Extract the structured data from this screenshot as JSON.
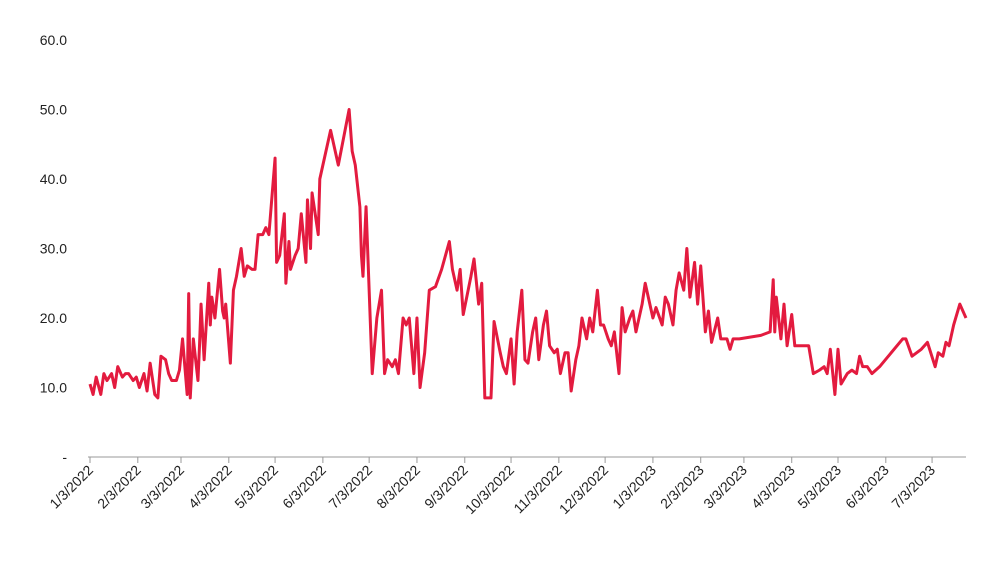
{
  "chart_data": {
    "type": "line",
    "x": [
      "1/3/2022",
      "1/5/2022",
      "1/7/2022",
      "1/10/2022",
      "1/12/2022",
      "1/14/2022",
      "1/17/2022",
      "1/19/2022",
      "1/21/2022",
      "1/24/2022",
      "1/26/2022",
      "1/28/2022",
      "1/31/2022",
      "2/2/2022",
      "2/4/2022",
      "2/7/2022",
      "2/9/2022",
      "2/11/2022",
      "2/14/2022",
      "2/16/2022",
      "2/18/2022",
      "2/21/2022",
      "2/23/2022",
      "2/25/2022",
      "2/28/2022",
      "3/2/2022",
      "3/4/2022",
      "3/7/2022",
      "3/8/2022",
      "3/9/2022",
      "3/11/2022",
      "3/14/2022",
      "3/15/2022",
      "3/16/2022",
      "3/18/2022",
      "3/21/2022",
      "3/22/2022",
      "3/23/2022",
      "3/25/2022",
      "3/28/2022",
      "3/30/2022",
      "3/31/2022",
      "4/1/2022",
      "4/4/2022",
      "4/6/2022",
      "4/8/2022",
      "4/11/2022",
      "4/13/2022",
      "4/15/2022",
      "4/18/2022",
      "4/20/2022",
      "4/22/2022",
      "4/25/2022",
      "4/27/2022",
      "4/29/2022",
      "5/3/2022",
      "5/4/2022",
      "5/6/2022",
      "5/9/2022",
      "5/10/2022",
      "5/12/2022",
      "5/13/2022",
      "5/16/2022",
      "5/18/2022",
      "5/20/2022",
      "5/23/2022",
      "5/24/2022",
      "5/26/2022",
      "5/27/2022",
      "5/31/2022",
      "6/1/2022",
      "6/8/2022",
      "6/13/2022",
      "6/20/2022",
      "6/22/2022",
      "6/24/2022",
      "6/27/2022",
      "6/28/2022",
      "6/29/2022",
      "7/1/2022",
      "7/5/2022",
      "7/8/2022",
      "7/11/2022",
      "7/13/2022",
      "7/15/2022",
      "7/18/2022",
      "7/20/2022",
      "7/22/2022",
      "7/25/2022",
      "7/27/2022",
      "7/29/2022",
      "8/1/2022",
      "8/3/2022",
      "8/5/2022",
      "8/8/2022",
      "8/11/2022",
      "8/15/2022",
      "8/19/2022",
      "8/24/2022",
      "8/26/2022",
      "8/29/2022",
      "8/31/2022",
      "9/2/2022",
      "9/7/2022",
      "9/9/2022",
      "9/12/2022",
      "9/14/2022",
      "9/16/2022",
      "9/20/2022",
      "9/22/2022",
      "9/26/2022",
      "9/28/2022",
      "9/30/2022",
      "10/3/2022",
      "10/5/2022",
      "10/7/2022",
      "10/10/2022",
      "10/12/2022",
      "10/14/2022",
      "10/17/2022",
      "10/19/2022",
      "10/21/2022",
      "10/24/2022",
      "10/26/2022",
      "10/28/2022",
      "10/31/2022",
      "11/2/2022",
      "11/4/2022",
      "11/7/2022",
      "11/9/2022",
      "11/11/2022",
      "11/14/2022",
      "11/16/2022",
      "11/18/2022",
      "11/21/2022",
      "11/23/2022",
      "11/25/2022",
      "11/28/2022",
      "11/30/2022",
      "12/2/2022",
      "12/5/2022",
      "12/7/2022",
      "12/9/2022",
      "12/12/2022",
      "12/14/2022",
      "12/16/2022",
      "12/19/2022",
      "12/21/2022",
      "12/23/2022",
      "12/27/2022",
      "12/29/2022",
      "1/3/2023",
      "1/5/2023",
      "1/9/2023",
      "1/11/2023",
      "1/13/2023",
      "1/16/2023",
      "1/18/2023",
      "1/20/2023",
      "1/23/2023",
      "1/25/2023",
      "1/27/2023",
      "1/30/2023",
      "2/1/2023",
      "2/3/2023",
      "2/6/2023",
      "2/8/2023",
      "2/10/2023",
      "2/14/2023",
      "2/16/2023",
      "2/20/2023",
      "2/22/2023",
      "2/24/2023",
      "2/28/2023",
      "3/14/2023",
      "3/20/2023",
      "3/22/2023",
      "3/23/2023",
      "3/24/2023",
      "3/27/2023",
      "3/29/2023",
      "3/31/2023",
      "4/3/2023",
      "4/5/2023",
      "4/10/2023",
      "4/14/2023",
      "4/17/2023",
      "4/21/2023",
      "4/24/2023",
      "4/26/2023",
      "4/28/2023",
      "5/1/2023",
      "5/3/2023",
      "5/5/2023",
      "5/9/2023",
      "5/12/2023",
      "5/15/2023",
      "5/17/2023",
      "5/19/2023",
      "5/22/2023",
      "5/25/2023",
      "5/30/2023",
      "6/14/2023",
      "6/16/2023",
      "6/20/2023",
      "6/26/2023",
      "6/30/2023",
      "7/5/2023",
      "7/7/2023",
      "7/10/2023",
      "7/12/2023",
      "7/14/2023",
      "7/17/2023",
      "7/21/2023",
      "7/25/2023"
    ],
    "values": [
      10.5,
      9,
      11.5,
      9,
      12,
      11,
      12,
      10,
      13,
      11.5,
      12,
      12,
      11,
      11.5,
      10,
      12,
      9.5,
      13.5,
      9,
      8.5,
      14.5,
      14,
      12,
      11,
      11,
      12.5,
      17,
      9,
      23.5,
      8.5,
      17,
      11,
      16,
      22,
      14,
      25,
      19,
      23,
      20,
      27,
      21,
      20,
      22,
      13.5,
      24,
      26,
      30,
      26,
      27.5,
      27,
      27,
      32,
      32,
      33,
      32,
      43,
      28,
      29,
      35,
      25,
      31,
      27,
      29,
      30,
      35,
      28,
      37,
      30,
      38,
      32,
      40,
      47,
      42,
      50,
      44,
      42,
      36,
      29,
      26,
      36,
      12,
      20,
      24,
      12,
      14,
      13,
      14,
      12,
      20,
      19,
      20,
      12,
      20,
      10,
      15,
      24,
      24.5,
      27,
      31,
      27,
      24,
      27,
      20.5,
      26,
      28.5,
      22,
      25,
      8.5,
      8.5,
      19.5,
      15,
      13,
      12,
      17,
      10.5,
      18,
      24,
      14,
      13.5,
      18,
      20,
      14,
      19,
      21,
      16,
      15,
      15.5,
      12,
      15,
      15,
      9.5,
      14,
      16,
      20,
      17,
      20,
      18,
      24,
      19,
      19,
      17,
      16,
      18,
      12,
      21.5,
      18,
      20,
      21,
      18,
      22,
      25,
      20,
      21.5,
      19,
      23,
      22,
      19,
      24,
      26.5,
      24,
      30,
      23,
      28,
      22,
      27.5,
      18,
      21,
      16.5,
      20,
      17,
      17,
      15.5,
      17,
      17,
      17.5,
      18,
      25.5,
      18,
      23,
      17,
      22,
      16,
      20.5,
      16,
      16,
      16,
      12,
      12.5,
      13,
      12,
      15.5,
      9,
      15.5,
      10.5,
      12,
      12.5,
      12,
      14.5,
      13,
      13,
      12,
      13,
      17,
      17,
      14.5,
      15.5,
      16.5,
      13,
      15,
      14.5,
      16.5,
      16,
      19,
      22,
      20
    ],
    "color": "#e31b3f",
    "xlim": [
      "1/3/2022",
      "7/25/2023"
    ],
    "xticks": [
      "1/3/2022",
      "2/3/2022",
      "3/3/2022",
      "4/3/2022",
      "5/3/2022",
      "6/3/2022",
      "7/3/2022",
      "8/3/2022",
      "9/3/2022",
      "10/3/2022",
      "11/3/2022",
      "12/3/2022",
      "1/3/2023",
      "2/3/2023",
      "3/3/2023",
      "4/3/2023",
      "5/3/2023",
      "6/3/2023",
      "7/3/2023"
    ],
    "ylim": [
      0,
      60
    ],
    "yticks": [
      {
        "value": 0,
        "label": "-"
      },
      {
        "value": 10,
        "label": "10.0"
      },
      {
        "value": 20,
        "label": "20.0"
      },
      {
        "value": 30,
        "label": "30.0"
      },
      {
        "value": 40,
        "label": "40.0"
      },
      {
        "value": 50,
        "label": "50.0"
      },
      {
        "value": 60,
        "label": "60.0"
      }
    ],
    "grid": false
  }
}
